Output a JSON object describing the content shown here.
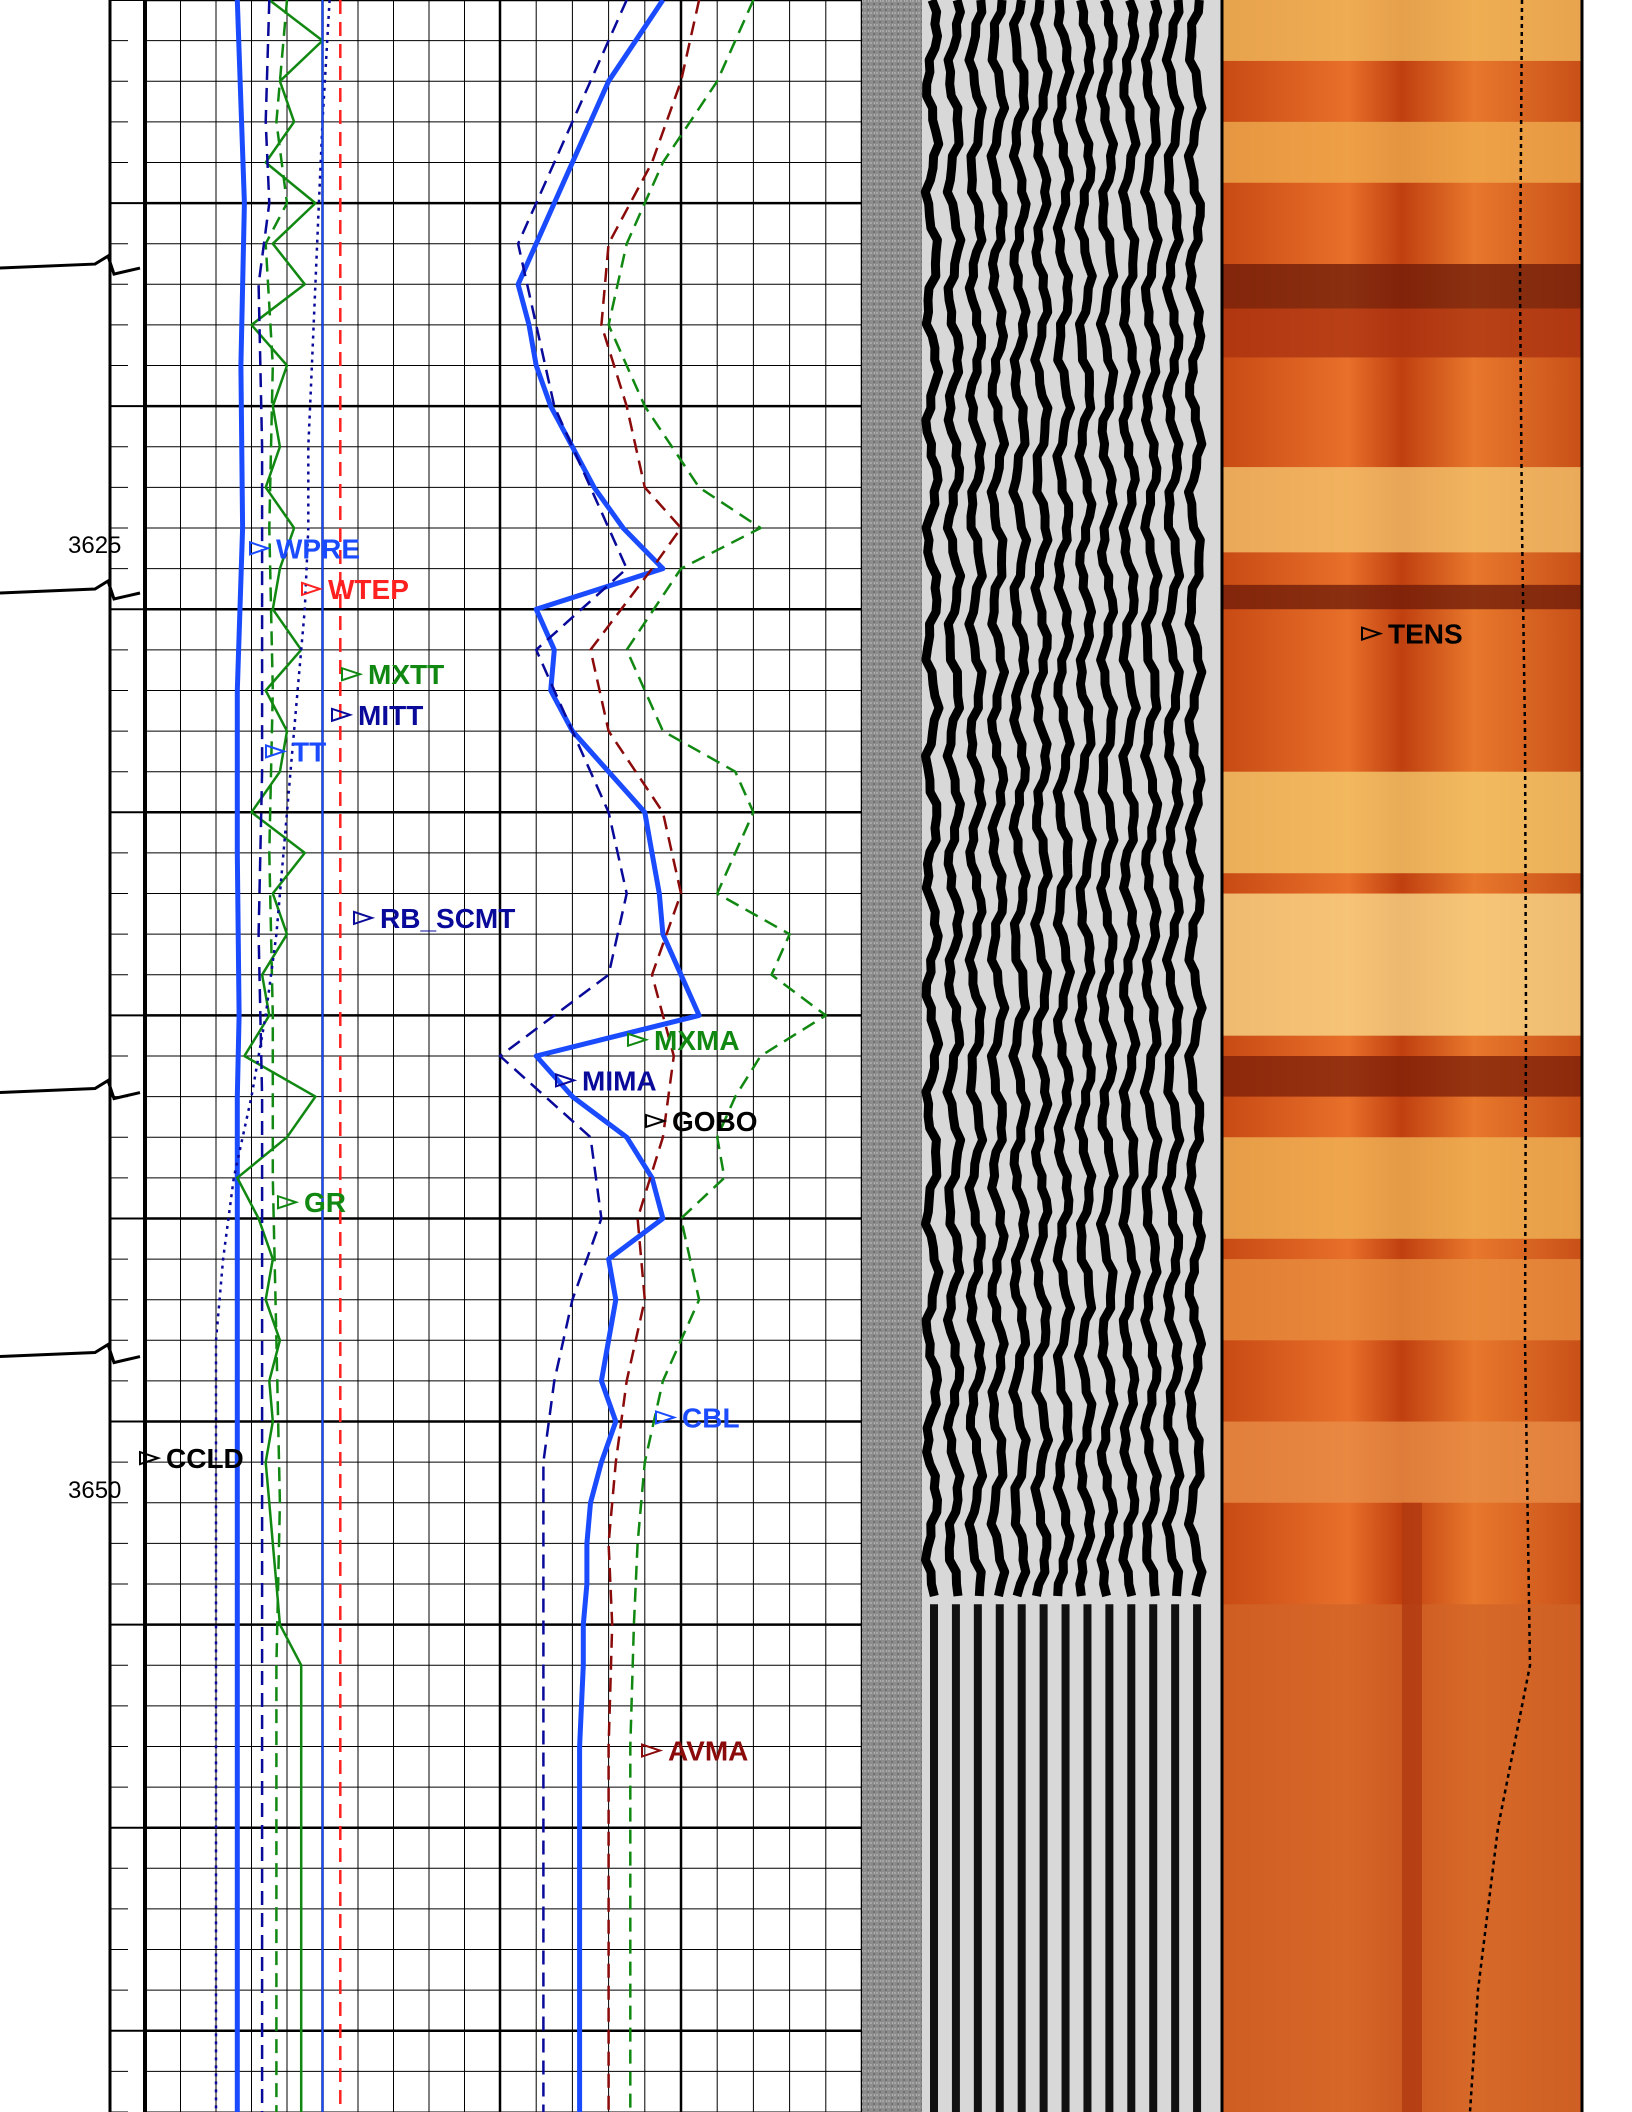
{
  "chart_data": {
    "type": "line",
    "title": "",
    "depth_axis": {
      "range": [
        3615,
        3667
      ],
      "major_ticks": [
        3625,
        3650
      ]
    },
    "depth_labels": [
      "3625",
      "3650"
    ],
    "colors": {
      "blue": "#1a4bff",
      "navy": "#0a0a9a",
      "green": "#118811",
      "red": "#ff2020",
      "darkred": "#8b0a0a",
      "black": "#000000"
    },
    "curve_labels": [
      {
        "name": "WPRE",
        "color": "#1a4bff",
        "depth": 3628.5
      },
      {
        "name": "WTEP",
        "color": "#ff2020",
        "depth": 3629.5
      },
      {
        "name": "MXTT",
        "color": "#118811",
        "depth": 3631.6
      },
      {
        "name": "MITT",
        "color": "#0a0a9a",
        "depth": 3632.6
      },
      {
        "name": "TT",
        "color": "#1a4bff",
        "depth": 3633.5
      },
      {
        "name": "RB_SCMT",
        "color": "#0a0a9a",
        "depth": 3637.6
      },
      {
        "name": "MXMA",
        "color": "#118811",
        "depth": 3640.6
      },
      {
        "name": "MIMA",
        "color": "#0a0a9a",
        "depth": 3641.6
      },
      {
        "name": "GOBO",
        "color": "#000000",
        "depth": 3642.6
      },
      {
        "name": "GR",
        "color": "#118811",
        "depth": 3644.6
      },
      {
        "name": "CBL",
        "color": "#1a4bff",
        "depth": 3649.9
      },
      {
        "name": "CCLD",
        "color": "#000000",
        "depth": 3650.9
      },
      {
        "name": "TENS",
        "color": "#000000",
        "depth": 3630.6
      },
      {
        "name": "AVMA",
        "color": "#8b0a0a",
        "depth": 3658.1
      }
    ],
    "collar_depths": [
      3621.6,
      3629.6,
      3641.9,
      3648.4
    ],
    "series": [
      {
        "name": "TT",
        "track": 1,
        "color": "#1a4bff",
        "style": "thick",
        "depth": [
          3615,
          3620,
          3624,
          3628,
          3632,
          3636,
          3640,
          3642,
          3646,
          3650,
          3655,
          3660,
          3667
        ],
        "value": [
          0.26,
          0.28,
          0.27,
          0.275,
          0.26,
          0.26,
          0.265,
          0.26,
          0.26,
          0.26,
          0.26,
          0.26,
          0.26
        ]
      },
      {
        "name": "GR",
        "track": 1,
        "color": "#118811",
        "style": "solid",
        "depth": [
          3615,
          3616,
          3617,
          3618,
          3619,
          3620,
          3621,
          3622,
          3623,
          3624,
          3625,
          3626,
          3627,
          3628,
          3629,
          3630,
          3631,
          3632,
          3633,
          3634,
          3635,
          3636,
          3637,
          3638,
          3639,
          3640,
          3641,
          3642,
          3643,
          3644,
          3645,
          3646,
          3647,
          3648,
          3649,
          3650,
          3651,
          3652,
          3653,
          3654,
          3655,
          3656,
          3667
        ],
        "value": [
          0.35,
          0.5,
          0.38,
          0.42,
          0.34,
          0.48,
          0.36,
          0.45,
          0.3,
          0.4,
          0.36,
          0.38,
          0.34,
          0.42,
          0.38,
          0.36,
          0.44,
          0.34,
          0.4,
          0.38,
          0.3,
          0.45,
          0.36,
          0.4,
          0.33,
          0.35,
          0.28,
          0.48,
          0.4,
          0.26,
          0.32,
          0.36,
          0.34,
          0.38,
          0.35,
          0.36,
          0.34,
          0.35,
          0.36,
          0.37,
          0.38,
          0.44,
          0.44
        ]
      },
      {
        "name": "MXTT",
        "track": 1,
        "color": "#118811",
        "style": "dash",
        "depth": [
          3615,
          3618,
          3620,
          3621,
          3624,
          3628,
          3632,
          3636,
          3640,
          3644,
          3648,
          3652,
          3656,
          3660,
          3667
        ],
        "value": [
          0.4,
          0.37,
          0.4,
          0.34,
          0.36,
          0.35,
          0.36,
          0.35,
          0.36,
          0.36,
          0.37,
          0.38,
          0.37,
          0.37,
          0.37
        ]
      },
      {
        "name": "MITT",
        "track": 1,
        "color": "#0a0a9a",
        "style": "dash",
        "depth": [
          3615,
          3618,
          3620,
          3622,
          3626,
          3630,
          3634,
          3638,
          3642,
          3646,
          3650,
          3654,
          3660,
          3667
        ],
        "value": [
          0.35,
          0.34,
          0.35,
          0.32,
          0.33,
          0.33,
          0.33,
          0.32,
          0.33,
          0.33,
          0.33,
          0.33,
          0.33,
          0.33
        ]
      },
      {
        "name": "CCLD",
        "track": 1,
        "color": "#0a0a9a",
        "style": "dot",
        "depth": [
          3615,
          3618,
          3620,
          3622,
          3624,
          3626,
          3628,
          3630,
          3632,
          3634,
          3636,
          3638,
          3640,
          3642,
          3644,
          3646,
          3648,
          3650,
          3655,
          3660,
          3667
        ],
        "value": [
          0.52,
          0.5,
          0.49,
          0.48,
          0.47,
          0.46,
          0.46,
          0.45,
          0.43,
          0.41,
          0.39,
          0.37,
          0.34,
          0.3,
          0.25,
          0.22,
          0.2,
          0.2,
          0.2,
          0.2,
          0.2
        ]
      },
      {
        "name": "WPRE",
        "track": 1,
        "color": "#1a4bff",
        "style": "solid-thin",
        "depth": [
          3615,
          3667
        ],
        "value": [
          0.5,
          0.5
        ]
      },
      {
        "name": "WTEP",
        "track": 1,
        "color": "#ff2020",
        "style": "dash",
        "depth": [
          3615,
          3667
        ],
        "value": [
          0.55,
          0.55
        ]
      },
      {
        "name": "CBL",
        "track": 2,
        "color": "#1a4bff",
        "style": "thick",
        "depth": [
          3615,
          3617,
          3619,
          3621,
          3622,
          3623,
          3624,
          3625,
          3626,
          3627,
          3628,
          3629,
          3630,
          3631,
          3632,
          3633,
          3634,
          3635,
          3636,
          3637,
          3638,
          3639,
          3640,
          3641,
          3642,
          3643,
          3644,
          3645,
          3646,
          3647,
          3648,
          3649,
          3650,
          3651,
          3652,
          3653,
          3654,
          3655,
          3656,
          3658,
          3660,
          3667
        ],
        "value": [
          0.45,
          0.3,
          0.2,
          0.1,
          0.05,
          0.08,
          0.1,
          0.14,
          0.2,
          0.26,
          0.34,
          0.45,
          0.1,
          0.15,
          0.14,
          0.2,
          0.3,
          0.4,
          0.42,
          0.44,
          0.45,
          0.5,
          0.55,
          0.1,
          0.2,
          0.35,
          0.42,
          0.45,
          0.3,
          0.32,
          0.3,
          0.28,
          0.32,
          0.28,
          0.25,
          0.24,
          0.24,
          0.23,
          0.23,
          0.22,
          0.22,
          0.22
        ]
      },
      {
        "name": "AVMA",
        "track": 2,
        "color": "#8b0a0a",
        "style": "dash",
        "depth": [
          3615,
          3617,
          3619,
          3621,
          3623,
          3625,
          3627,
          3628,
          3629,
          3631,
          3633,
          3635,
          3637,
          3639,
          3641,
          3643,
          3645,
          3647,
          3649,
          3651,
          3653,
          3655,
          3658,
          3667
        ],
        "value": [
          0.55,
          0.5,
          0.42,
          0.3,
          0.28,
          0.35,
          0.4,
          0.5,
          0.42,
          0.25,
          0.3,
          0.45,
          0.5,
          0.42,
          0.48,
          0.45,
          0.38,
          0.4,
          0.35,
          0.32,
          0.3,
          0.31,
          0.3,
          0.3
        ]
      },
      {
        "name": "MXMA",
        "track": 2,
        "color": "#118811",
        "style": "dash",
        "depth": [
          3615,
          3617,
          3619,
          3621,
          3623,
          3625,
          3627,
          3628,
          3629,
          3631,
          3633,
          3634,
          3635,
          3637,
          3638,
          3639,
          3640,
          3641,
          3642,
          3643,
          3644,
          3645,
          3647,
          3649,
          3651,
          3653,
          3655,
          3658,
          3667
        ],
        "value": [
          0.7,
          0.6,
          0.45,
          0.35,
          0.3,
          0.4,
          0.55,
          0.72,
          0.5,
          0.35,
          0.45,
          0.65,
          0.7,
          0.6,
          0.8,
          0.75,
          0.9,
          0.72,
          0.65,
          0.6,
          0.62,
          0.5,
          0.55,
          0.45,
          0.4,
          0.38,
          0.37,
          0.36,
          0.36
        ]
      },
      {
        "name": "MIMA",
        "track": 2,
        "color": "#0a0a9a",
        "style": "dash",
        "depth": [
          3615,
          3617,
          3619,
          3621,
          3623,
          3625,
          3627,
          3629,
          3631,
          3633,
          3635,
          3637,
          3639,
          3641,
          3643,
          3645,
          3647,
          3649,
          3651,
          3653,
          3655,
          3658,
          3667
        ],
        "value": [
          0.35,
          0.25,
          0.15,
          0.05,
          0.1,
          0.15,
          0.25,
          0.35,
          0.1,
          0.2,
          0.3,
          0.35,
          0.3,
          0.0,
          0.25,
          0.28,
          0.2,
          0.15,
          0.12,
          0.12,
          0.12,
          0.12,
          0.12
        ]
      }
    ]
  }
}
